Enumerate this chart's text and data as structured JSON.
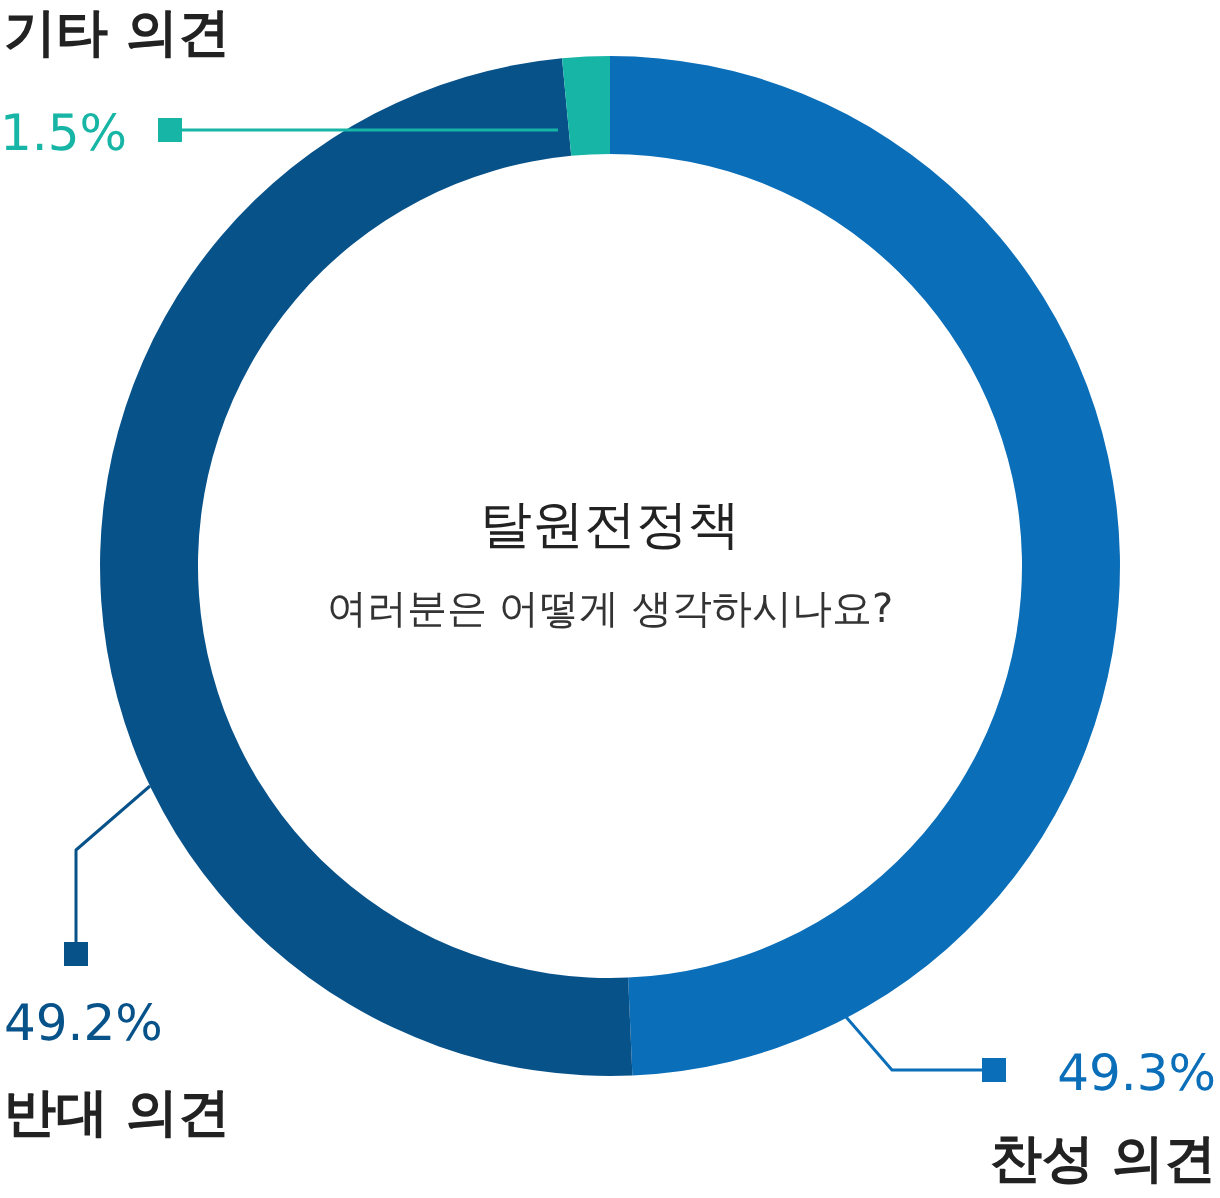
{
  "chart_data": {
    "type": "donut",
    "title": "탈원전정책",
    "subtitle": "여러분은 어떻게 생각하시나요?",
    "categories": [
      "찬성 의견",
      "반대 의견",
      "기타 의견"
    ],
    "values": [
      49.3,
      49.2,
      1.5
    ],
    "colors": [
      "#0a6eb9",
      "#08528a",
      "#17b5a5"
    ],
    "value_labels": [
      "49.3%",
      "49.2%",
      "1.5%"
    ]
  }
}
